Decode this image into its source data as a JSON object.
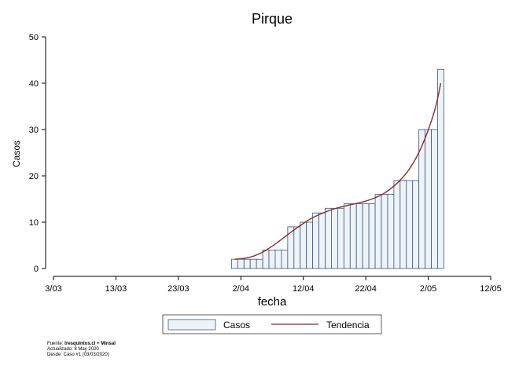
{
  "chart_data": {
    "type": "bar",
    "title": "Pirque",
    "xlabel": "fecha",
    "ylabel": "Casos",
    "ylim": [
      0,
      50
    ],
    "yticks": [
      0,
      10,
      20,
      30,
      40,
      50
    ],
    "xlim": [
      "2020-03-03",
      "2020-05-12"
    ],
    "xticks": [
      {
        "date": "2020-03-03",
        "label": "3/03"
      },
      {
        "date": "2020-03-13",
        "label": "13/03"
      },
      {
        "date": "2020-03-23",
        "label": "23/03"
      },
      {
        "date": "2020-04-02",
        "label": "2/04"
      },
      {
        "date": "2020-04-12",
        "label": "12/04"
      },
      {
        "date": "2020-04-22",
        "label": "22/04"
      },
      {
        "date": "2020-05-02",
        "label": "2/05"
      },
      {
        "date": "2020-05-12",
        "label": "12/05"
      }
    ],
    "series": [
      {
        "name": "Casos",
        "kind": "bar",
        "color": "#eef3f7",
        "edge": "#3a5a80",
        "dates": [
          "2020-04-01",
          "2020-04-02",
          "2020-04-03",
          "2020-04-04",
          "2020-04-05",
          "2020-04-06",
          "2020-04-07",
          "2020-04-08",
          "2020-04-09",
          "2020-04-10",
          "2020-04-11",
          "2020-04-12",
          "2020-04-13",
          "2020-04-14",
          "2020-04-15",
          "2020-04-16",
          "2020-04-17",
          "2020-04-18",
          "2020-04-19",
          "2020-04-20",
          "2020-04-21",
          "2020-04-22",
          "2020-04-23",
          "2020-04-24",
          "2020-04-25",
          "2020-04-26",
          "2020-04-27",
          "2020-04-28",
          "2020-04-29",
          "2020-04-30",
          "2020-05-01",
          "2020-05-02",
          "2020-05-03",
          "2020-05-04"
        ],
        "values": [
          2,
          2,
          2,
          2,
          2,
          4,
          4,
          4,
          4,
          9,
          9,
          10,
          10,
          12,
          12,
          13,
          13,
          13,
          14,
          14,
          14,
          14,
          14,
          16,
          16,
          16,
          19,
          19,
          19,
          19,
          30,
          30,
          30,
          43
        ]
      },
      {
        "name": "Tendencia",
        "kind": "line",
        "color": "#8b2a2a",
        "dates": [
          "2020-04-01",
          "2020-04-03",
          "2020-04-05",
          "2020-04-07",
          "2020-04-09",
          "2020-04-11",
          "2020-04-13",
          "2020-04-15",
          "2020-04-17",
          "2020-04-19",
          "2020-04-21",
          "2020-04-23",
          "2020-04-25",
          "2020-04-27",
          "2020-04-29",
          "2020-05-01",
          "2020-05-03",
          "2020-05-04"
        ],
        "values": [
          2,
          2.3,
          3.2,
          4.8,
          6.8,
          8.8,
          10.6,
          11.9,
          12.9,
          13.6,
          14.2,
          15,
          16.3,
          18.4,
          21.5,
          26.5,
          34,
          40
        ]
      }
    ],
    "legend": {
      "placement": "bottom",
      "items": [
        "Casos",
        "Tendencia"
      ]
    }
  },
  "footer": {
    "source_prefix": "Fuente: ",
    "source_bold": "tresquintos.cl + Minsal",
    "updated": "Actualizado: 8 May 2020",
    "since": "Desde: Caso #1  (03/03/2020)"
  }
}
